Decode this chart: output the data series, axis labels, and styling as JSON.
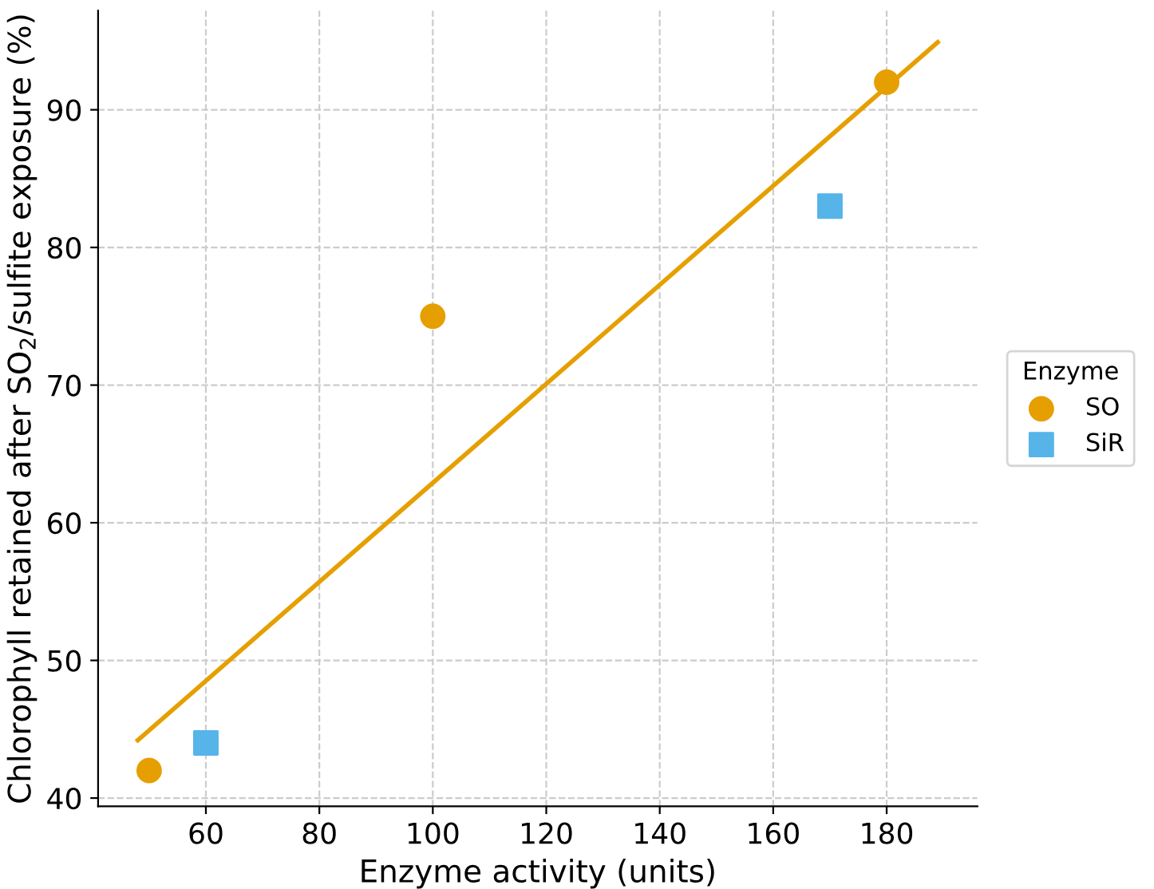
{
  "chart_data": {
    "type": "scatter",
    "xlabel": "Enzyme activity (units)",
    "ylabel": "Chlorophyll retained after SO$_{2}$/sulfite exposure (%)",
    "legend_title": "Enzyme",
    "legend": "right",
    "grid": true,
    "xlim": [
      41,
      196
    ],
    "xticks": [
      60,
      80,
      100,
      120,
      140,
      160,
      180
    ],
    "ylim": [
      39.4,
      97.2
    ],
    "yticks": [
      40,
      50,
      60,
      70,
      80,
      90
    ],
    "series": [
      {
        "name": "SO",
        "color": "#e69f00",
        "marker": "circle",
        "x": [
          50,
          100,
          180
        ],
        "values": [
          42,
          75,
          92
        ]
      },
      {
        "name": "SiR",
        "color": "#56b4e9",
        "marker": "square",
        "x": [
          60,
          170
        ],
        "values": [
          44,
          83
        ]
      },
      {
        "type": "line",
        "color": "#e69f00",
        "marker": "none",
        "line_style": "solid",
        "x": [
          48,
          189
        ],
        "values": [
          44.2,
          94.9
        ]
      }
    ]
  }
}
